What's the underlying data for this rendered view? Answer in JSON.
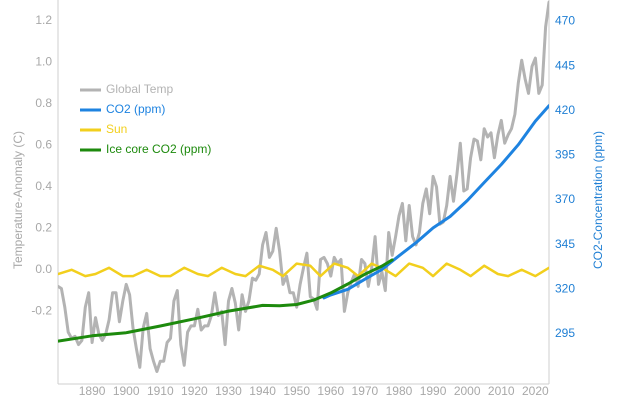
{
  "chart_data": {
    "type": "line",
    "ylabel_left": "Temperature-Anomaly (C)",
    "ylabel_right": "CO2-Concentration (ppm)",
    "xlim": [
      1880,
      2024
    ],
    "ylim_left": [
      -0.55,
      1.3
    ],
    "ylim_right": [
      267,
      482
    ],
    "x_ticks": [
      "1890",
      "1900",
      "1910",
      "1920",
      "1930",
      "1940",
      "1950",
      "1960",
      "1970",
      "1980",
      "1990",
      "2000",
      "2010",
      "2020"
    ],
    "y_ticks_left": [
      "-0.2",
      "0.0",
      "0.2",
      "0.4",
      "0.6",
      "0.8",
      "1.0",
      "1.2"
    ],
    "y_ticks_right": [
      "295",
      "320",
      "345",
      "370",
      "395",
      "420",
      "445",
      "470"
    ],
    "legend_position": "top-left",
    "grid": false,
    "series": [
      {
        "name": "Global Temp",
        "axis": "left",
        "color": "#b3b3b3",
        "x": [
          1880,
          1881,
          1882,
          1883,
          1884,
          1885,
          1886,
          1887,
          1888,
          1889,
          1890,
          1891,
          1892,
          1893,
          1894,
          1895,
          1896,
          1897,
          1898,
          1899,
          1900,
          1901,
          1902,
          1903,
          1904,
          1905,
          1906,
          1907,
          1908,
          1909,
          1910,
          1911,
          1912,
          1913,
          1914,
          1915,
          1916,
          1917,
          1918,
          1919,
          1920,
          1921,
          1922,
          1923,
          1924,
          1925,
          1926,
          1927,
          1928,
          1929,
          1930,
          1931,
          1932,
          1933,
          1934,
          1935,
          1936,
          1937,
          1938,
          1939,
          1940,
          1941,
          1942,
          1943,
          1944,
          1945,
          1946,
          1947,
          1948,
          1949,
          1950,
          1951,
          1952,
          1953,
          1954,
          1955,
          1956,
          1957,
          1958,
          1959,
          1960,
          1961,
          1962,
          1963,
          1964,
          1965,
          1966,
          1967,
          1968,
          1969,
          1970,
          1971,
          1972,
          1973,
          1974,
          1975,
          1976,
          1977,
          1978,
          1979,
          1980,
          1981,
          1982,
          1983,
          1984,
          1985,
          1986,
          1987,
          1988,
          1989,
          1990,
          1991,
          1992,
          1993,
          1994,
          1995,
          1996,
          1997,
          1998,
          1999,
          2000,
          2001,
          2002,
          2003,
          2004,
          2005,
          2006,
          2007,
          2008,
          2009,
          2010,
          2011,
          2012,
          2013,
          2014,
          2015,
          2016,
          2017,
          2018,
          2019,
          2020,
          2021,
          2022,
          2023,
          2024
        ],
        "values": [
          -0.08,
          -0.09,
          -0.18,
          -0.3,
          -0.33,
          -0.32,
          -0.36,
          -0.34,
          -0.18,
          -0.11,
          -0.35,
          -0.23,
          -0.31,
          -0.34,
          -0.31,
          -0.24,
          -0.11,
          -0.11,
          -0.25,
          -0.15,
          -0.07,
          -0.12,
          -0.28,
          -0.38,
          -0.47,
          -0.28,
          -0.21,
          -0.38,
          -0.44,
          -0.49,
          -0.44,
          -0.44,
          -0.35,
          -0.33,
          -0.15,
          -0.1,
          -0.36,
          -0.46,
          -0.3,
          -0.27,
          -0.27,
          -0.19,
          -0.29,
          -0.27,
          -0.27,
          -0.22,
          -0.11,
          -0.22,
          -0.2,
          -0.36,
          -0.15,
          -0.09,
          -0.16,
          -0.29,
          -0.12,
          -0.2,
          -0.15,
          -0.04,
          -0.05,
          -0.02,
          0.12,
          0.18,
          0.06,
          0.09,
          0.2,
          0.09,
          -0.07,
          -0.03,
          -0.11,
          -0.11,
          -0.18,
          -0.07,
          0.01,
          0.08,
          -0.13,
          -0.14,
          -0.19,
          0.05,
          0.06,
          0.03,
          -0.03,
          0.06,
          0.03,
          0.05,
          -0.2,
          -0.11,
          -0.06,
          -0.02,
          -0.08,
          0.05,
          0.03,
          -0.08,
          0.01,
          0.16,
          -0.07,
          -0.01,
          -0.1,
          0.18,
          0.07,
          0.16,
          0.26,
          0.32,
          0.14,
          0.31,
          0.16,
          0.12,
          0.18,
          0.32,
          0.39,
          0.27,
          0.45,
          0.4,
          0.22,
          0.23,
          0.31,
          0.45,
          0.33,
          0.46,
          0.61,
          0.38,
          0.39,
          0.54,
          0.63,
          0.62,
          0.53,
          0.68,
          0.64,
          0.66,
          0.54,
          0.65,
          0.72,
          0.61,
          0.65,
          0.68,
          0.75,
          0.9,
          1.01,
          0.92,
          0.85,
          0.98,
          1.02,
          0.85,
          0.89,
          1.17,
          1.29
        ]
      },
      {
        "name": "CO2 (ppm)",
        "axis": "right",
        "color": "#1e83e0",
        "x": [
          1958,
          1960,
          1965,
          1970,
          1975,
          1980,
          1985,
          1990,
          1995,
          2000,
          2005,
          2010,
          2015,
          2020,
          2024
        ],
        "values": [
          315.2,
          316.9,
          320.0,
          325.7,
          331.1,
          338.8,
          346.1,
          354.4,
          360.8,
          369.7,
          379.8,
          389.9,
          401.0,
          414.2,
          422.8
        ]
      },
      {
        "name": "Sun",
        "axis": "left",
        "color": "#f2cf1d",
        "x": [
          1880,
          1884,
          1888,
          1891,
          1895,
          1899,
          1902,
          1906,
          1910,
          1913,
          1917,
          1921,
          1924,
          1928,
          1932,
          1935,
          1939,
          1943,
          1946,
          1950,
          1954,
          1957,
          1961,
          1965,
          1968,
          1972,
          1976,
          1979,
          1983,
          1987,
          1990,
          1994,
          1998,
          2001,
          2005,
          2009,
          2012,
          2016,
          2020,
          2024
        ],
        "values": [
          -0.02,
          0.0,
          -0.03,
          -0.02,
          0.01,
          -0.03,
          -0.03,
          0.0,
          -0.03,
          -0.03,
          0.01,
          -0.02,
          -0.03,
          0.01,
          -0.02,
          -0.03,
          0.02,
          0.0,
          -0.03,
          0.03,
          0.02,
          -0.03,
          0.03,
          0.01,
          -0.03,
          0.03,
          0.0,
          -0.03,
          0.03,
          0.01,
          -0.03,
          0.03,
          0.0,
          -0.03,
          0.02,
          -0.02,
          -0.03,
          0.0,
          -0.03,
          0.01
        ]
      },
      {
        "name": "Ice core CO2 (ppm)",
        "axis": "right",
        "color": "#1d8a0d",
        "x": [
          1880,
          1890,
          1900,
          1910,
          1920,
          1930,
          1940,
          1945,
          1950,
          1955,
          1960,
          1965,
          1970,
          1975,
          1978
        ],
        "values": [
          291.0,
          294.0,
          295.7,
          299.5,
          303.5,
          307.8,
          311.0,
          310.8,
          311.5,
          314.0,
          318.0,
          323.0,
          328.5,
          333.0,
          336.5
        ]
      }
    ]
  }
}
